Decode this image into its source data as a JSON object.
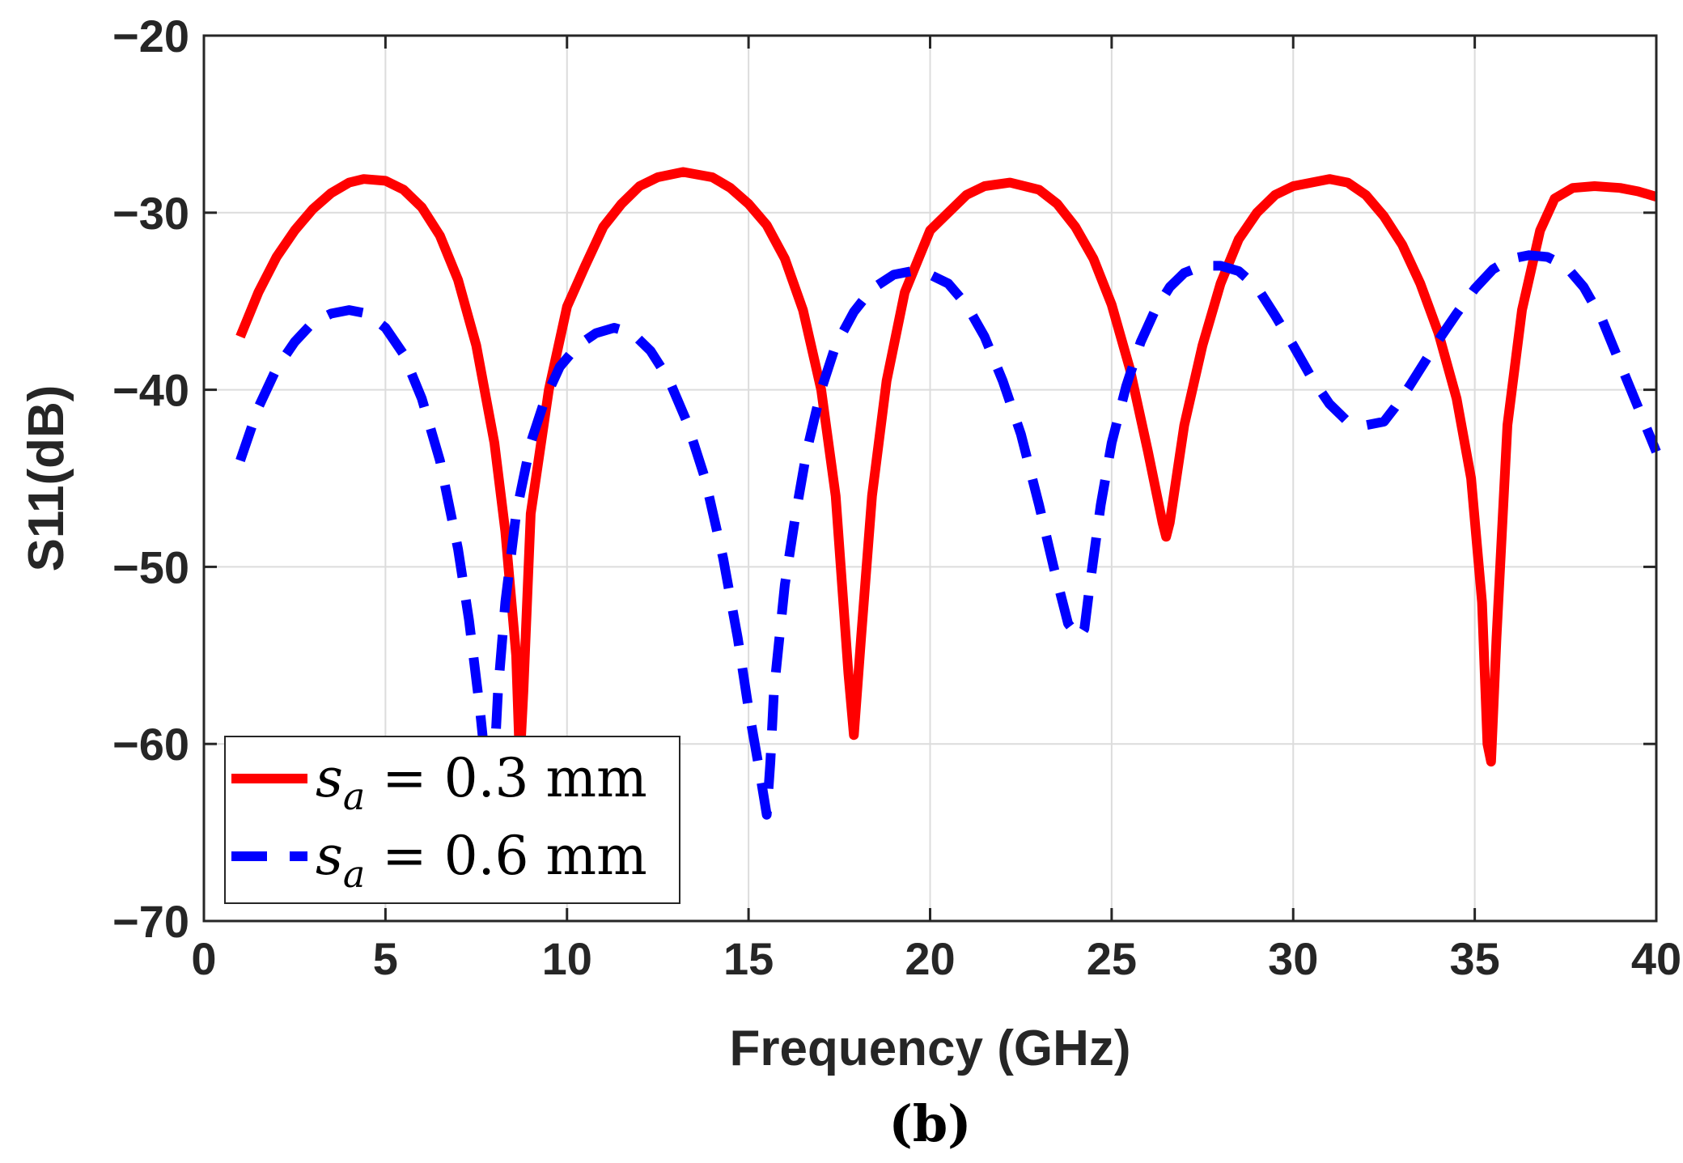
{
  "caption": "(b)",
  "chart_data": {
    "type": "line",
    "title": "",
    "xlabel": "Frequency (GHz)",
    "ylabel": "S11(dB)",
    "xlim": [
      0,
      40
    ],
    "ylim": [
      -70,
      -20
    ],
    "xticks": [
      0,
      5,
      10,
      15,
      20,
      25,
      30,
      35,
      40
    ],
    "yticks": [
      -20,
      -30,
      -40,
      -50,
      -60,
      -70
    ],
    "xtick_labels": [
      "0",
      "5",
      "10",
      "15",
      "20",
      "25",
      "30",
      "35",
      "40"
    ],
    "ytick_labels": [
      "−20",
      "−30",
      "−40",
      "−50",
      "−60",
      "−70"
    ],
    "grid": true,
    "legend_position": "bottom-left",
    "series": [
      {
        "name": "s_a = 0.3 mm",
        "legend_var": "s",
        "legend_sub": "a",
        "legend_rest": " = 0.3 mm",
        "color": "#ff0000",
        "style": "solid",
        "x": [
          1,
          1.5,
          2,
          2.5,
          3,
          3.5,
          4,
          4.4,
          5,
          5.5,
          6,
          6.5,
          7,
          7.5,
          8,
          8.3,
          8.6,
          8.7,
          8.8,
          9,
          9.5,
          10,
          10.5,
          11,
          11.5,
          12,
          12.5,
          13.2,
          14,
          14.5,
          15,
          15.5,
          16,
          16.5,
          17,
          17.4,
          17.75,
          17.9,
          18.1,
          18.4,
          18.8,
          19.3,
          20,
          20.5,
          21,
          21.5,
          22.2,
          23,
          23.5,
          24,
          24.5,
          25,
          25.5,
          26,
          26.4,
          26.5,
          26.6,
          27,
          27.5,
          28,
          28.5,
          29,
          29.5,
          30,
          30.5,
          31,
          31.5,
          32,
          32.5,
          33,
          33.5,
          34,
          34.5,
          34.9,
          35.2,
          35.35,
          35.45,
          35.6,
          35.9,
          36.3,
          36.8,
          37.2,
          37.7,
          38.3,
          39,
          39.5,
          40
        ],
        "y": [
          -37,
          -34.5,
          -32.5,
          -31,
          -29.8,
          -28.9,
          -28.3,
          -28.1,
          -28.2,
          -28.7,
          -29.7,
          -31.3,
          -33.8,
          -37.5,
          -43,
          -48,
          -55,
          -61,
          -57,
          -47,
          -40,
          -35.3,
          -33,
          -30.8,
          -29.5,
          -28.5,
          -28,
          -27.7,
          -28,
          -28.6,
          -29.5,
          -30.7,
          -32.6,
          -35.5,
          -40,
          -46,
          -56,
          -59.5,
          -54,
          -46,
          -39.5,
          -34.5,
          -31,
          -30,
          -29,
          -28.5,
          -28.3,
          -28.7,
          -29.5,
          -30.8,
          -32.6,
          -35.2,
          -38.8,
          -43.5,
          -47.5,
          -48.3,
          -47.5,
          -42,
          -37.5,
          -34,
          -31.5,
          -30,
          -29,
          -28.5,
          -28.3,
          -28.1,
          -28.3,
          -29,
          -30.2,
          -31.8,
          -34,
          -36.8,
          -40.5,
          -45,
          -52,
          -60,
          -61,
          -54,
          -42,
          -35.5,
          -31,
          -29.2,
          -28.6,
          -28.5,
          -28.6,
          -28.8,
          -29.1
        ]
      },
      {
        "name": "s_a = 0.6 mm",
        "legend_var": "s",
        "legend_sub": "a",
        "legend_rest": " = 0.6 mm",
        "color": "#0000ff",
        "style": "dashed",
        "x": [
          1,
          1.5,
          2,
          2.5,
          3,
          3.5,
          4,
          4.5,
          5,
          5.5,
          6,
          6.5,
          7,
          7.3,
          7.6,
          7.8,
          8,
          8.1,
          8.3,
          8.6,
          9,
          9.4,
          9.8,
          10.3,
          10.8,
          11.3,
          11.8,
          12.3,
          12.8,
          13.3,
          13.8,
          14.3,
          14.7,
          15,
          15.3,
          15.5,
          15.6,
          15.7,
          16,
          16.3,
          16.6,
          17,
          17.4,
          17.9,
          18.4,
          19,
          19.5,
          20,
          20.5,
          21,
          21.5,
          22,
          22.5,
          23,
          23.4,
          23.8,
          24.1,
          24.25,
          24.4,
          24.7,
          25,
          25.4,
          25.8,
          26.2,
          26.6,
          27,
          27.5,
          28,
          28.5,
          29,
          29.5,
          30,
          30.5,
          31,
          31.5,
          32,
          32.5,
          32.8,
          33.2,
          33.6,
          34,
          34.5,
          35,
          35.5,
          36,
          36.5,
          37,
          37.5,
          38,
          38.5,
          39,
          39.5,
          40
        ],
        "y": [
          -44,
          -41,
          -38.8,
          -37.3,
          -36.2,
          -35.7,
          -35.5,
          -35.7,
          -36.5,
          -38,
          -40.5,
          -44,
          -49,
          -53,
          -58,
          -62,
          -61,
          -57,
          -52,
          -47,
          -43,
          -40.5,
          -38.7,
          -37.5,
          -36.8,
          -36.5,
          -36.8,
          -37.8,
          -39.4,
          -41.8,
          -45,
          -49.5,
          -54,
          -58,
          -61.5,
          -64,
          -61,
          -57,
          -51,
          -47,
          -43.5,
          -40,
          -37.5,
          -35.6,
          -34.3,
          -33.5,
          -33.3,
          -33.5,
          -34,
          -35.2,
          -37,
          -39.5,
          -42.5,
          -46.5,
          -50,
          -53.2,
          -54,
          -53.5,
          -51,
          -46.5,
          -43,
          -39.8,
          -37.3,
          -35.5,
          -34.2,
          -33.4,
          -33,
          -33,
          -33.3,
          -34.2,
          -35.8,
          -37.5,
          -39.3,
          -40.8,
          -41.8,
          -42,
          -41.8,
          -41,
          -39.8,
          -38.5,
          -37.2,
          -35.7,
          -34.3,
          -33.2,
          -32.6,
          -32.4,
          -32.5,
          -33,
          -34.2,
          -36,
          -38.5,
          -41,
          -43.5
        ]
      }
    ]
  }
}
